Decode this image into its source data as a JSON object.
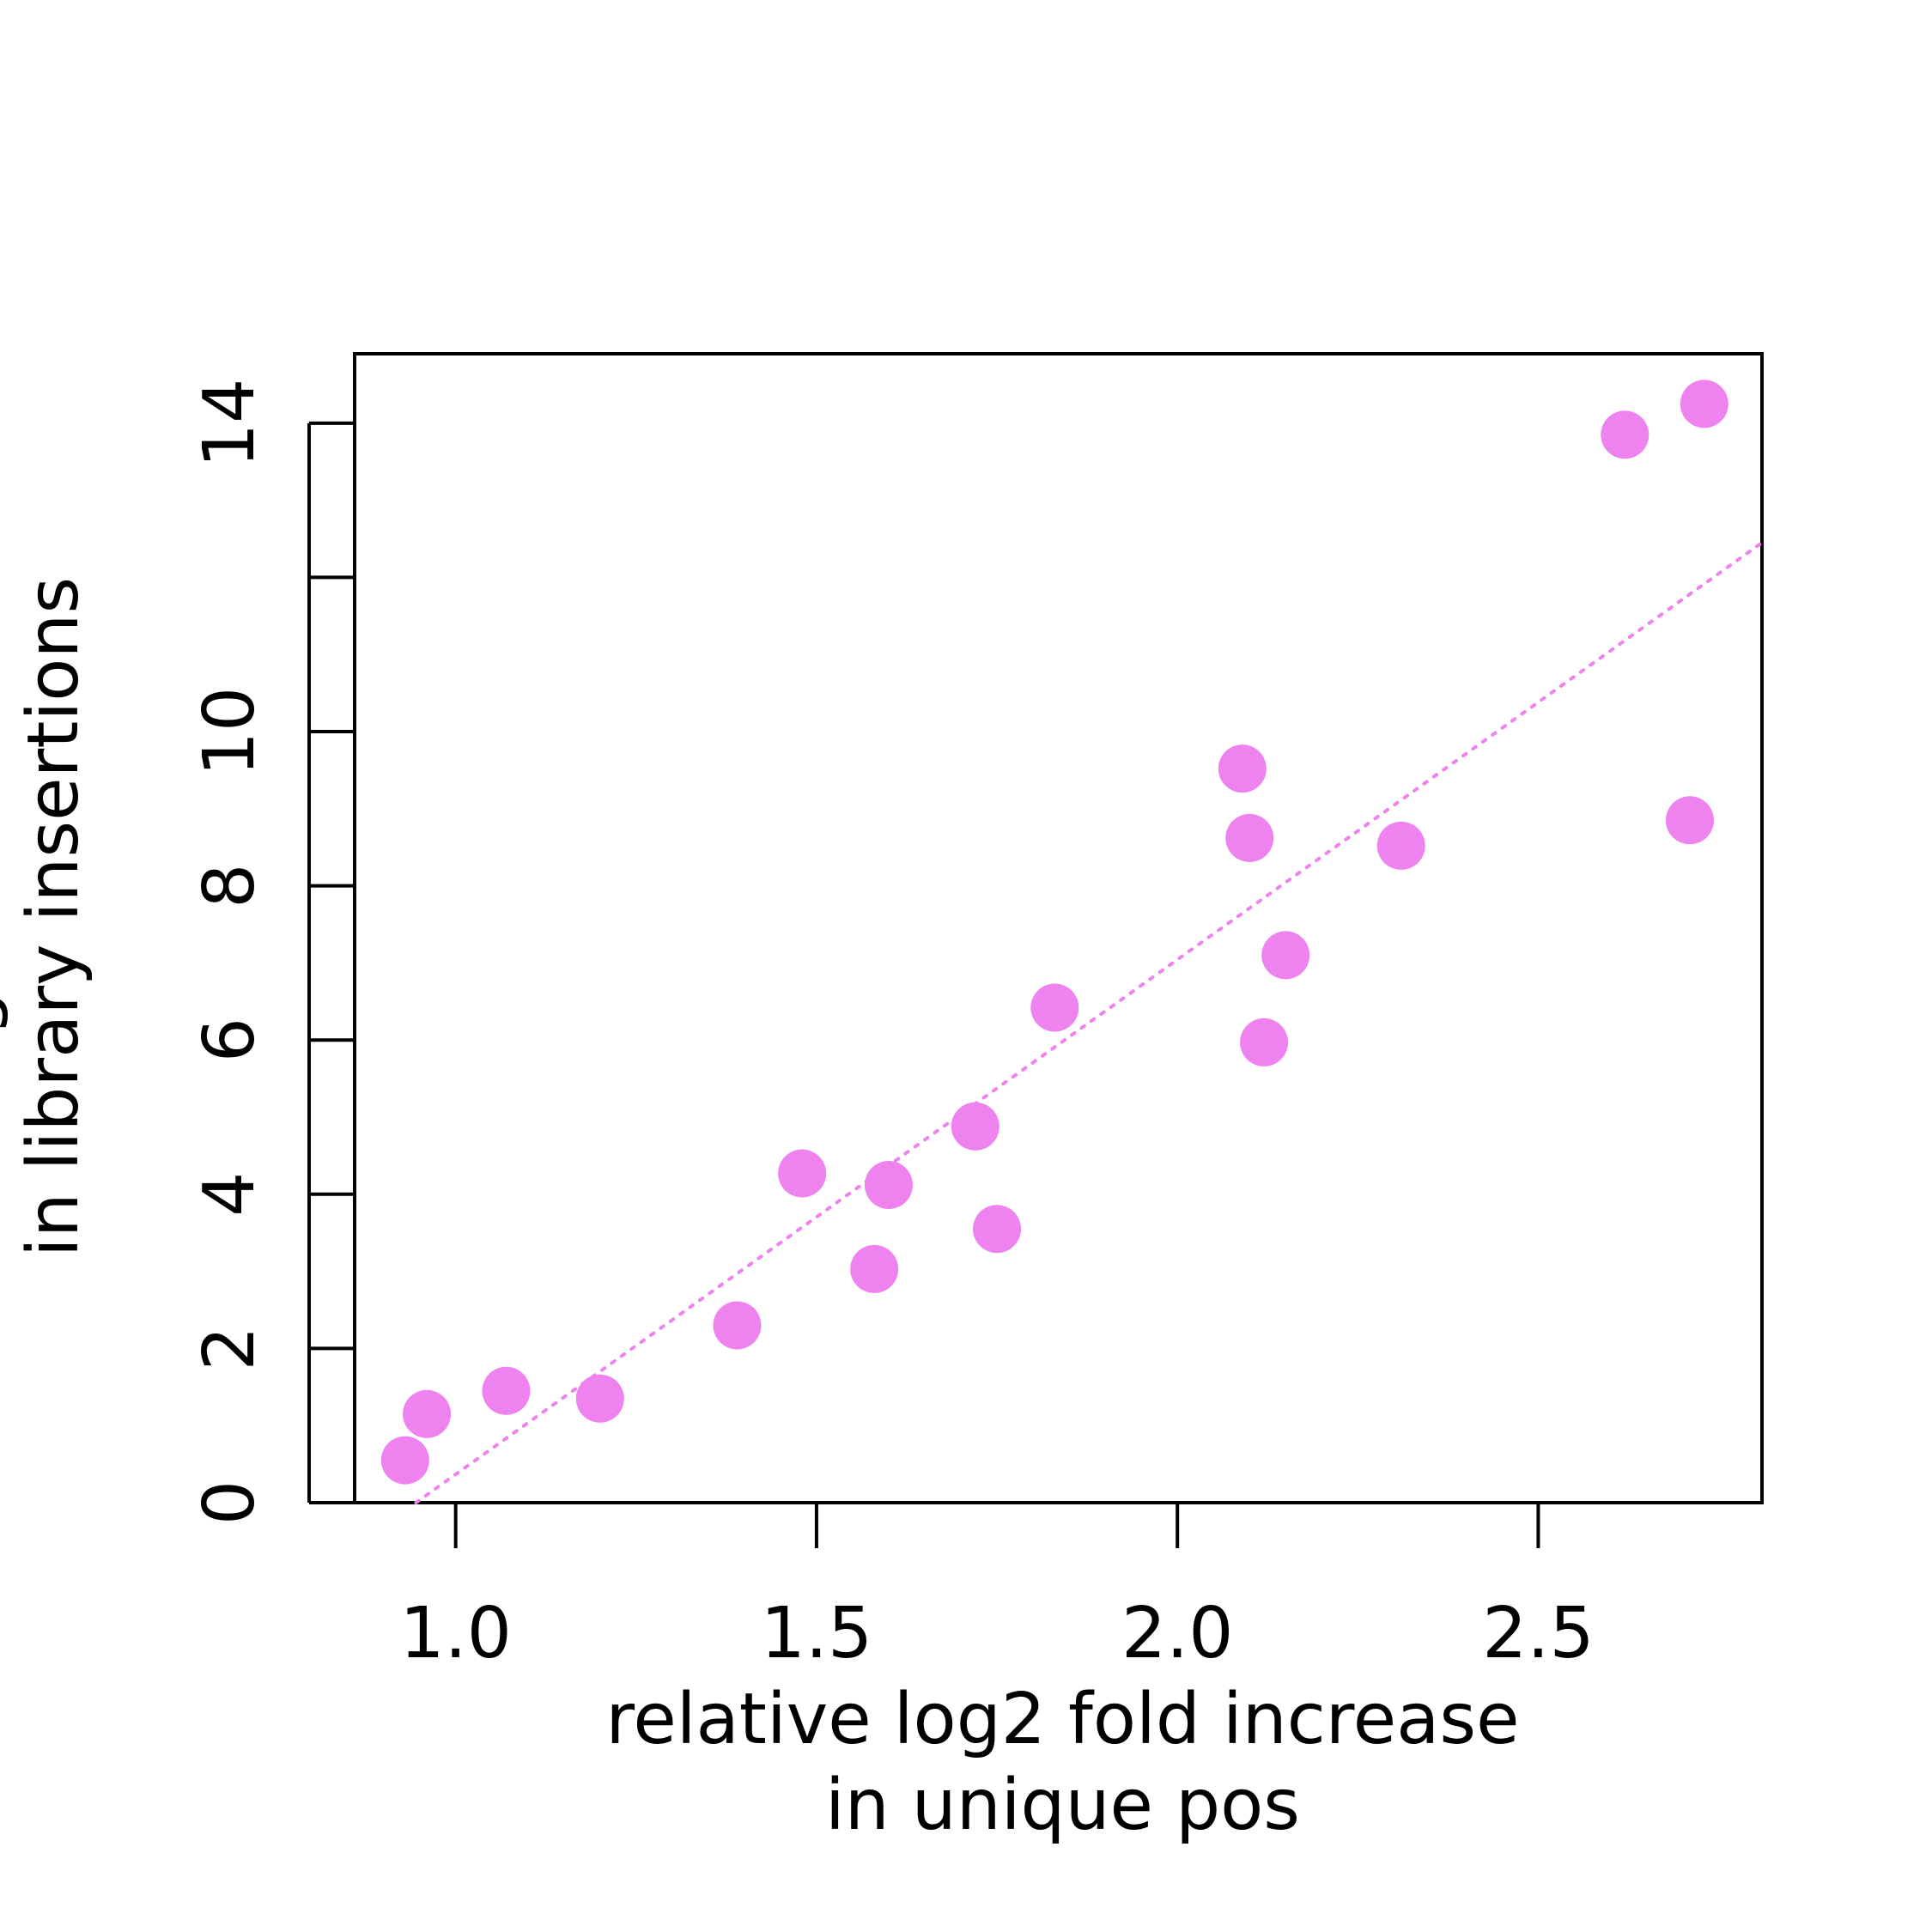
{
  "chart_data": {
    "type": "scatter",
    "title": "",
    "xlabel_lines": [
      "relative log2 fold increase",
      "in unique pos"
    ],
    "ylabel_lines": [
      "g",
      "in library insertions"
    ],
    "xlim": [
      0.86,
      2.81
    ],
    "ylim": [
      0,
      14.9
    ],
    "xticks": [
      1.0,
      1.5,
      2.0,
      2.5
    ],
    "xtick_labels": [
      "1.0",
      "1.5",
      "2.0",
      "2.5"
    ],
    "yticks": [
      0,
      2,
      4,
      6,
      8,
      10,
      12,
      14
    ],
    "ytick_labels": [
      "0",
      "2",
      "4",
      "6",
      "8",
      "10",
      "",
      "14"
    ],
    "grid": false,
    "legend": "none",
    "marker_color": "#EE82EE",
    "fit_line": {
      "style": "dotted",
      "color": "#EE82EE",
      "x": [
        0.945,
        2.81
      ],
      "y": [
        0.0,
        12.45
      ]
    },
    "series": [
      {
        "x": [
          0.93,
          0.96,
          1.07,
          1.2,
          1.39,
          1.48,
          1.58,
          1.6,
          1.72,
          1.75,
          1.83,
          2.09,
          2.1,
          2.12,
          2.15,
          2.31,
          2.62,
          2.71,
          2.73
        ],
        "y": [
          0.55,
          1.15,
          1.45,
          1.35,
          2.3,
          4.27,
          3.03,
          4.12,
          4.88,
          3.55,
          6.42,
          9.52,
          8.62,
          5.97,
          7.1,
          8.52,
          13.85,
          8.85,
          14.25
        ]
      }
    ]
  }
}
